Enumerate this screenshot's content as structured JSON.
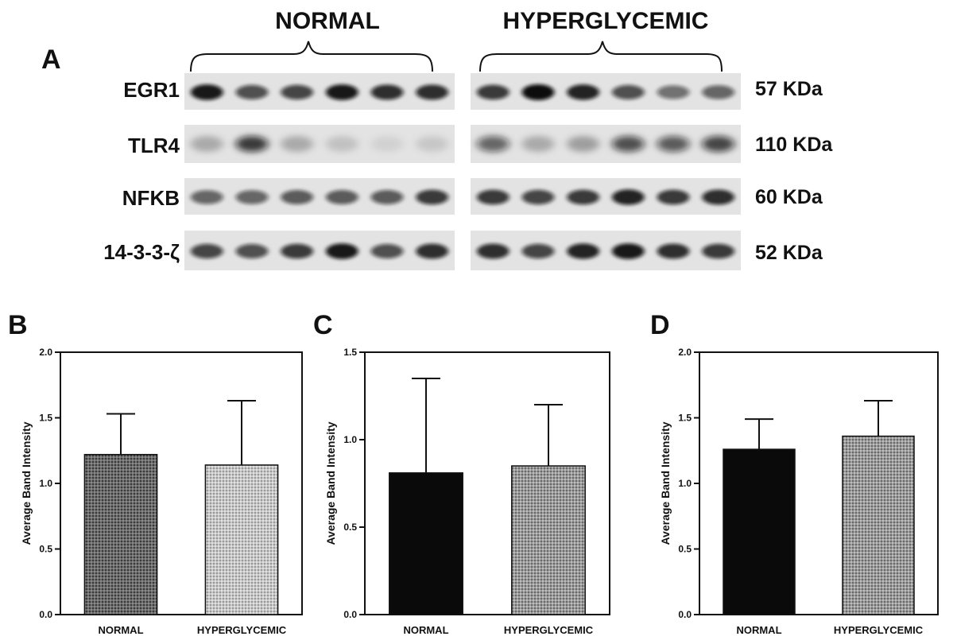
{
  "panel_a": {
    "letter": "A",
    "groups": [
      "NORMAL",
      "HYPERGLYCEMIC"
    ],
    "rows": [
      {
        "label": "EGR1",
        "kda": "57 KDa",
        "normal": [
          0.95,
          0.7,
          0.75,
          0.95,
          0.85,
          0.85
        ],
        "hyper": [
          0.8,
          1.0,
          0.9,
          0.7,
          0.55,
          0.6
        ],
        "width": "narrow"
      },
      {
        "label": "TLR4",
        "kda": "110  KDa",
        "normal": [
          0.25,
          0.8,
          0.25,
          0.15,
          0.08,
          0.12
        ],
        "hyper": [
          0.6,
          0.25,
          0.3,
          0.7,
          0.65,
          0.75
        ],
        "width": "diffuse"
      },
      {
        "label": "NFKB",
        "kda": "60 KDa",
        "normal": [
          0.6,
          0.6,
          0.65,
          0.65,
          0.65,
          0.8
        ],
        "hyper": [
          0.8,
          0.75,
          0.8,
          0.9,
          0.8,
          0.85
        ],
        "width": "narrow"
      },
      {
        "label": "14-3-3-ζ",
        "kda": "52 KDa",
        "normal": [
          0.75,
          0.7,
          0.8,
          0.95,
          0.7,
          0.85
        ],
        "hyper": [
          0.85,
          0.75,
          0.9,
          0.95,
          0.85,
          0.8
        ],
        "width": "narrow"
      }
    ]
  },
  "colors": {
    "band": "#111111",
    "blot_bg": "#e3e3e3",
    "axis": "#111111"
  },
  "chart_data": [
    {
      "panel": "B",
      "type": "bar",
      "categories": [
        "NORMAL",
        "HYPERGLYCEMIC"
      ],
      "values": [
        1.22,
        1.14
      ],
      "errors": [
        0.31,
        0.49
      ],
      "fills": [
        "dark-gray-hatch",
        "light-gray-hatch"
      ],
      "ylabel": "Average Band Intensity",
      "ylim": [
        0,
        2.0
      ],
      "yticks": [
        "0.0",
        "0.5",
        "1.0",
        "1.5",
        "2.0"
      ]
    },
    {
      "panel": "C",
      "type": "bar",
      "categories": [
        "NORMAL",
        "HYPERGLYCEMIC"
      ],
      "values": [
        0.81,
        0.85
      ],
      "errors": [
        0.54,
        0.35
      ],
      "fills": [
        "black",
        "gray-hatch"
      ],
      "ylabel": "Average Band Intensity",
      "ylim": [
        0,
        1.5
      ],
      "yticks": [
        "0.0",
        "0.5",
        "1.0",
        "1.5"
      ]
    },
    {
      "panel": "D",
      "type": "bar",
      "categories": [
        "NORMAL",
        "HYPERGLYCEMIC"
      ],
      "values": [
        1.26,
        1.36
      ],
      "errors": [
        0.23,
        0.27
      ],
      "fills": [
        "black",
        "gray-hatch"
      ],
      "ylabel": "Average Band Intensity",
      "ylim": [
        0,
        2.0
      ],
      "yticks": [
        "0.0",
        "0.5",
        "1.0",
        "1.5",
        "2.0"
      ]
    }
  ]
}
